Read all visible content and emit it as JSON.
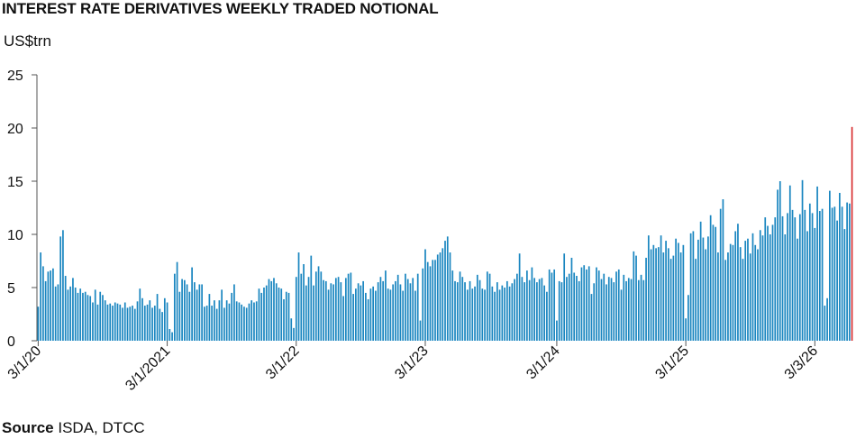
{
  "chart_data": {
    "type": "bar",
    "title": "INTEREST RATE DERIVATIVES WEEKLY TRADED NOTIONAL",
    "ylabel": "US$trn",
    "source_label": "Source",
    "source_text": "ISDA, DTCC",
    "ylim": [
      0,
      25
    ],
    "yticks": [
      0,
      5,
      10,
      15,
      20,
      25
    ],
    "xtick_labels": [
      "3/1/20",
      "3/1/2021",
      "3/1/22",
      "3/1/23",
      "3/1/24",
      "3/1/25",
      "3/3/26"
    ],
    "xtick_week_index": [
      0,
      52,
      104,
      156,
      209,
      261,
      313
    ],
    "colors": {
      "bars": "#1a86c0",
      "highlight": "#d62728",
      "axis": "#555555"
    },
    "highlight_last": true,
    "values": [
      3.2,
      8.3,
      7.0,
      5.6,
      6.5,
      6.6,
      6.8,
      5.1,
      5.3,
      9.8,
      10.4,
      6.1,
      4.8,
      5.1,
      5.9,
      5.0,
      4.5,
      4.9,
      4.5,
      4.6,
      4.3,
      4.2,
      3.6,
      4.8,
      3.4,
      4.6,
      4.3,
      3.8,
      3.4,
      3.5,
      3.3,
      3.6,
      3.5,
      3.4,
      3.1,
      3.6,
      3.1,
      3.2,
      3.3,
      3.0,
      3.7,
      4.9,
      4.0,
      3.3,
      3.4,
      3.8,
      3.1,
      3.3,
      4.4,
      3.0,
      2.7,
      4.0,
      3.6,
      1.1,
      0.8,
      6.3,
      7.4,
      4.6,
      5.8,
      5.7,
      5.3,
      4.6,
      6.9,
      5.5,
      4.8,
      5.3,
      5.3,
      3.2,
      3.3,
      4.4,
      3.3,
      3.8,
      3.0,
      3.8,
      4.8,
      3.1,
      3.8,
      3.5,
      4.5,
      5.3,
      3.7,
      3.6,
      3.4,
      3.2,
      3.1,
      3.5,
      3.8,
      3.6,
      3.7,
      4.9,
      4.5,
      5.0,
      5.2,
      5.8,
      5.6,
      5.9,
      5.4,
      5.0,
      4.9,
      3.9,
      4.6,
      4.5,
      2.1,
      1.2,
      6.0,
      8.3,
      6.3,
      7.2,
      5.2,
      6.0,
      8.0,
      5.2,
      6.5,
      7.0,
      6.5,
      5.7,
      5.6,
      4.8,
      5.4,
      5.3,
      5.9,
      6.0,
      5.5,
      4.2,
      5.9,
      6.3,
      6.4,
      4.4,
      4.9,
      5.4,
      5.2,
      5.6,
      4.5,
      3.9,
      4.9,
      5.1,
      4.7,
      5.5,
      6.0,
      5.6,
      6.6,
      4.9,
      4.8,
      5.3,
      5.6,
      6.2,
      5.3,
      4.7,
      6.3,
      5.8,
      5.4,
      5.9,
      4.7,
      6.3,
      1.9,
      6.8,
      8.6,
      7.4,
      7.0,
      7.6,
      7.6,
      8.1,
      8.3,
      8.7,
      9.4,
      9.8,
      8.3,
      6.6,
      5.6,
      5.5,
      6.5,
      6.0,
      5.5,
      4.8,
      5.6,
      4.9,
      5.1,
      6.2,
      5.7,
      4.9,
      4.8,
      6.5,
      6.3,
      5.1,
      4.6,
      5.5,
      4.8,
      5.2,
      5.0,
      5.6,
      5.1,
      5.4,
      5.8,
      6.3,
      8.2,
      6.0,
      5.5,
      6.6,
      5.7,
      6.9,
      5.9,
      5.5,
      5.8,
      5.9,
      5.2,
      4.6,
      6.7,
      6.4,
      6.7,
      1.9,
      5.6,
      5.5,
      8.2,
      6.0,
      6.3,
      7.8,
      6.4,
      6.1,
      5.6,
      6.9,
      7.1,
      6.7,
      7.0,
      4.4,
      5.4,
      6.9,
      6.6,
      5.8,
      6.3,
      5.3,
      6.0,
      5.9,
      5.5,
      6.5,
      6.7,
      4.8,
      6.2,
      5.6,
      5.9,
      5.8,
      8.4,
      8.0,
      5.7,
      6.2,
      5.7,
      7.8,
      9.9,
      8.6,
      9.0,
      8.7,
      8.8,
      9.9,
      8.3,
      9.4,
      8.7,
      7.7,
      8.0,
      9.6,
      9.2,
      8.3,
      9.0,
      2.1,
      4.3,
      10.1,
      10.3,
      7.7,
      9.5,
      11.2,
      9.7,
      8.6,
      9.8,
      11.8,
      10.9,
      10.7,
      8.3,
      12.4,
      13.3,
      7.6,
      8.3,
      9.1,
      9.0,
      10.3,
      11.0,
      8.8,
      7.7,
      9.4,
      9.6,
      8.2,
      10.1,
      9.0,
      8.6,
      10.4,
      9.9,
      11.6,
      10.8,
      10.0,
      10.9,
      11.6,
      14.2,
      15.0,
      11.7,
      10.0,
      12.0,
      14.6,
      12.3,
      11.6,
      9.6,
      11.9,
      15.1,
      12.3,
      10.3,
      12.9,
      12.0,
      10.6,
      14.5,
      12.2,
      12.4,
      3.3,
      4.0,
      14.1,
      12.5,
      12.6,
      11.3,
      13.9,
      12.6,
      10.5,
      13.0,
      12.9,
      20.1
    ]
  }
}
